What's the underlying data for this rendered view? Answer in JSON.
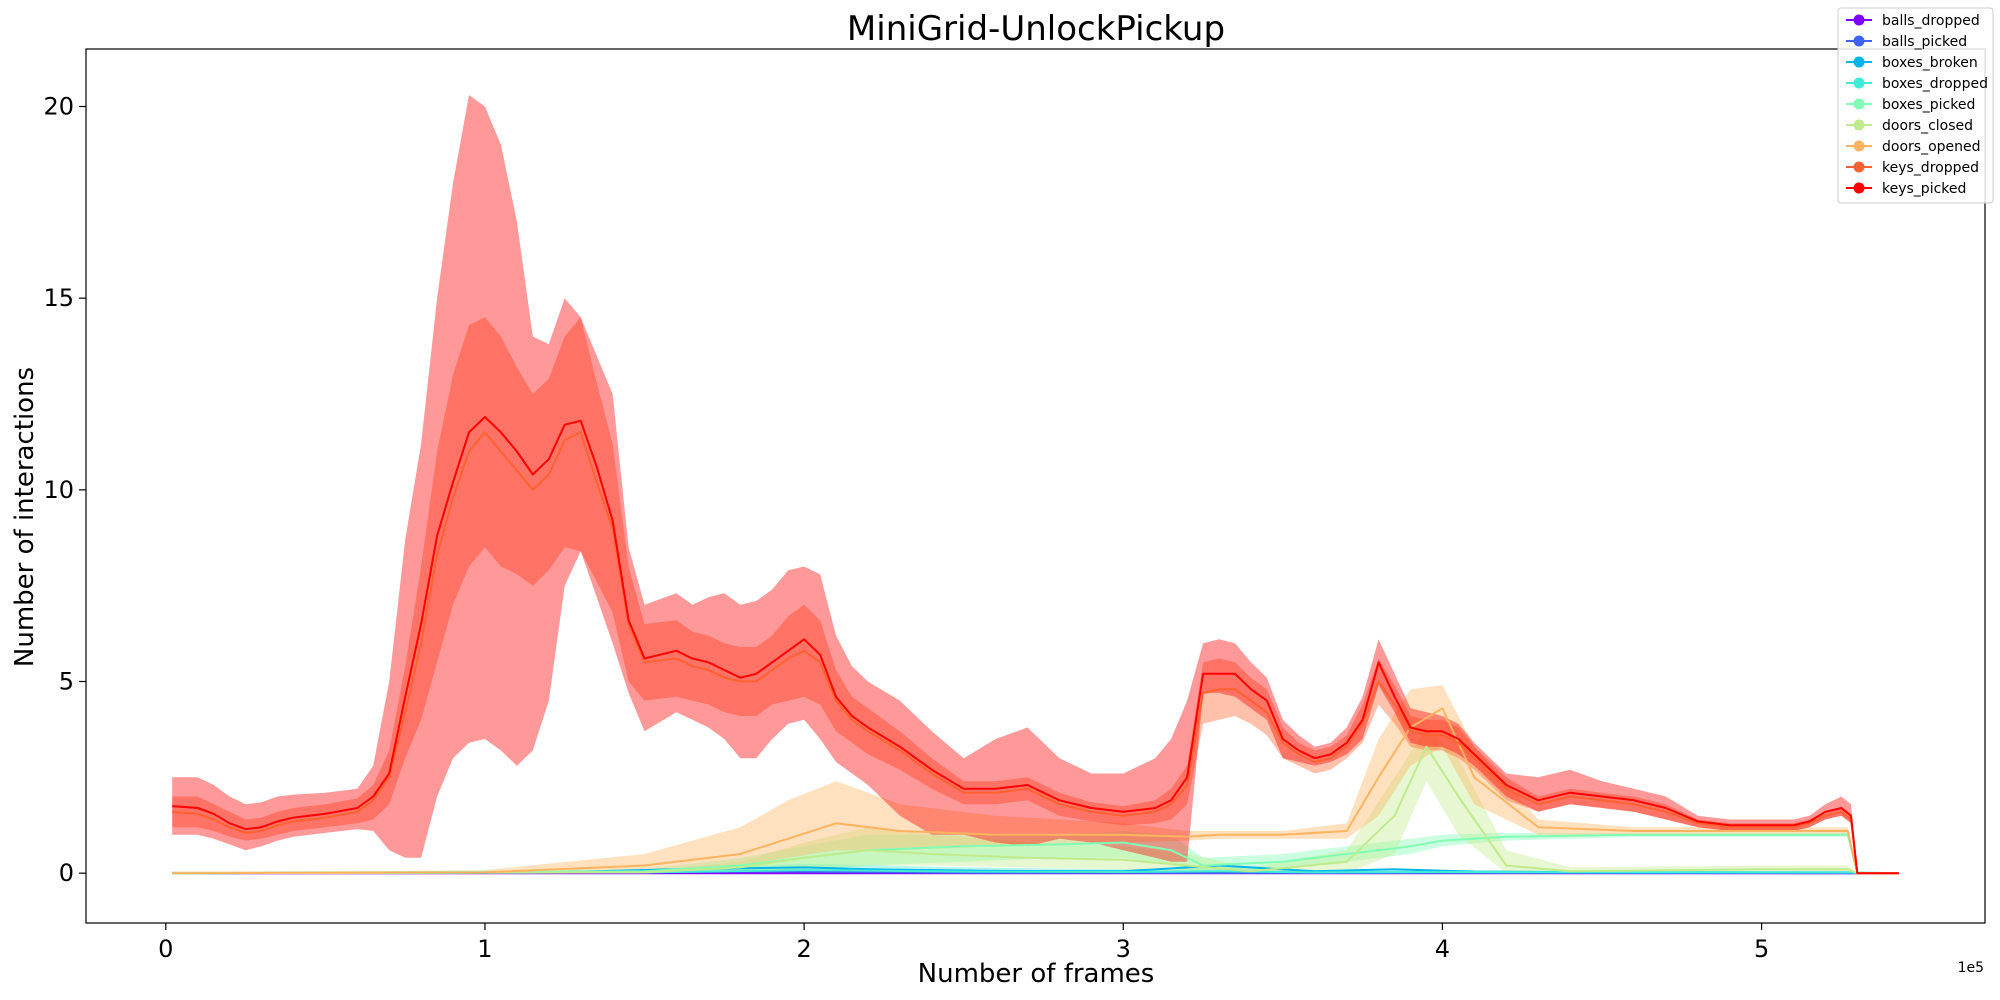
{
  "chart_data": {
    "type": "line",
    "title": "MiniGrid-UnlockPickup",
    "xlabel": "Number of frames",
    "ylabel": "Number of interactions",
    "x_offset_label": "1e5",
    "xlim": [
      -0.25,
      5.7
    ],
    "ylim": [
      -1.3,
      21.5
    ],
    "x_ticks": [
      0,
      1,
      2,
      3,
      4,
      5
    ],
    "x_tick_labels": [
      "0",
      "1",
      "2",
      "3",
      "4",
      "5"
    ],
    "y_ticks": [
      0,
      5,
      10,
      15,
      20
    ],
    "y_tick_labels": [
      "0",
      "5",
      "10",
      "15",
      "20"
    ],
    "grid": false,
    "legend_position": "top-right",
    "series": [
      {
        "name": "balls_dropped",
        "color": "#8000ff",
        "x": [
          0.02,
          5.43
        ],
        "y": [
          0.0,
          0.0
        ]
      },
      {
        "name": "balls_picked",
        "color": "#4062fa",
        "x": [
          0.02,
          1.5,
          1.9,
          2.1,
          2.5,
          5.43
        ],
        "y": [
          0.0,
          0.02,
          0.05,
          0.03,
          0.01,
          0.0
        ]
      },
      {
        "name": "boxes_broken",
        "color": "#00b5eb",
        "x": [
          0.02,
          1.2,
          1.6,
          2.0,
          2.2,
          2.6,
          3.0,
          3.3,
          3.6,
          3.85,
          4.1,
          4.5,
          5.27,
          5.3,
          5.43
        ],
        "y": [
          0.0,
          0.02,
          0.1,
          0.15,
          0.1,
          0.06,
          0.05,
          0.2,
          0.05,
          0.1,
          0.04,
          0.02,
          0.02,
          0.0,
          0.0
        ]
      },
      {
        "name": "boxes_dropped",
        "color": "#40ecd4",
        "x": [
          0.02,
          1.5,
          2.0,
          2.5,
          3.0,
          3.3,
          3.6,
          4.0,
          5.27,
          5.43
        ],
        "y": [
          0.0,
          0.02,
          0.08,
          0.04,
          0.03,
          0.05,
          0.02,
          0.03,
          0.02,
          0.0
        ],
        "band_low": [
          0.0,
          0.0,
          0.0,
          0.0,
          0.0,
          0.0,
          0.0,
          0.0,
          0.0,
          0.0
        ],
        "band_high": [
          0.0,
          0.05,
          0.25,
          0.15,
          0.1,
          0.15,
          0.05,
          0.08,
          0.05,
          0.0
        ]
      },
      {
        "name": "boxes_picked",
        "color": "#80ffb4",
        "x": [
          0.02,
          1.5,
          1.8,
          2.0,
          2.2,
          2.5,
          2.8,
          3.0,
          3.15,
          3.25,
          3.5,
          3.7,
          3.8,
          3.9,
          4.0,
          4.2,
          4.6,
          5.0,
          5.27,
          5.3,
          5.43
        ],
        "y": [
          0.0,
          0.05,
          0.2,
          0.4,
          0.6,
          0.7,
          0.75,
          0.8,
          0.6,
          0.2,
          0.3,
          0.5,
          0.6,
          0.7,
          0.85,
          0.95,
          1.0,
          1.0,
          1.0,
          0.0,
          0.0
        ],
        "band_low": [
          0.0,
          0.0,
          0.0,
          0.1,
          0.2,
          0.3,
          0.4,
          0.4,
          0.2,
          0.0,
          0.1,
          0.3,
          0.4,
          0.5,
          0.7,
          0.85,
          0.95,
          0.95,
          0.95,
          0.0,
          0.0
        ],
        "band_high": [
          0.0,
          0.1,
          0.4,
          0.7,
          1.0,
          1.0,
          1.0,
          1.1,
          1.0,
          0.4,
          0.5,
          0.7,
          0.8,
          0.9,
          1.0,
          1.05,
          1.05,
          1.05,
          1.05,
          0.0,
          0.0
        ]
      },
      {
        "name": "doors_closed",
        "color": "#c0eb8c",
        "x": [
          0.02,
          1.5,
          1.8,
          2.0,
          2.2,
          2.4,
          2.7,
          3.0,
          3.2,
          3.4,
          3.7,
          3.85,
          3.95,
          4.05,
          4.2,
          4.4,
          5.0,
          5.27,
          5.3,
          5.43
        ],
        "y": [
          0.0,
          0.02,
          0.15,
          0.4,
          0.6,
          0.5,
          0.4,
          0.35,
          0.2,
          0.05,
          0.3,
          1.5,
          3.3,
          2.0,
          0.2,
          0.05,
          0.1,
          0.1,
          0.0,
          0.0
        ],
        "band_low": [
          0.0,
          0.0,
          0.0,
          0.1,
          0.2,
          0.2,
          0.15,
          0.1,
          0.0,
          0.0,
          0.0,
          0.5,
          2.4,
          1.0,
          0.0,
          0.0,
          0.05,
          0.05,
          0.0,
          0.0
        ],
        "band_high": [
          0.0,
          0.05,
          0.3,
          0.8,
          1.2,
          1.0,
          0.8,
          0.7,
          0.5,
          0.15,
          0.6,
          2.5,
          3.8,
          3.0,
          0.6,
          0.15,
          0.2,
          0.2,
          0.0,
          0.0
        ]
      },
      {
        "name": "doors_opened",
        "color": "#ffb360",
        "x": [
          0.02,
          0.5,
          1.0,
          1.5,
          1.8,
          1.95,
          2.1,
          2.3,
          2.6,
          3.0,
          3.2,
          3.3,
          3.5,
          3.7,
          3.8,
          3.9,
          4.0,
          4.1,
          4.3,
          4.6,
          5.0,
          5.27,
          5.3,
          5.43
        ],
        "y": [
          0.0,
          0.01,
          0.02,
          0.2,
          0.5,
          0.9,
          1.3,
          1.1,
          1.0,
          1.0,
          0.95,
          1.0,
          1.0,
          1.1,
          2.5,
          3.8,
          4.3,
          2.5,
          1.2,
          1.1,
          1.1,
          1.1,
          0.0,
          0.0
        ],
        "band_low": [
          0.0,
          0.0,
          0.0,
          0.05,
          0.2,
          0.4,
          0.6,
          0.6,
          0.7,
          0.8,
          0.85,
          0.9,
          0.9,
          0.9,
          1.5,
          2.8,
          3.3,
          1.8,
          1.0,
          1.0,
          1.0,
          1.0,
          0.0,
          0.0
        ],
        "band_high": [
          0.05,
          0.05,
          0.08,
          0.5,
          1.2,
          1.9,
          2.4,
          1.8,
          1.5,
          1.3,
          1.1,
          1.1,
          1.1,
          1.3,
          3.5,
          4.8,
          4.9,
          3.3,
          1.4,
          1.2,
          1.2,
          1.2,
          0.0,
          0.0
        ]
      },
      {
        "name": "keys_dropped",
        "color": "#ff6230",
        "x": [
          0.02,
          0.1,
          0.15,
          0.2,
          0.25,
          0.3,
          0.35,
          0.4,
          0.5,
          0.6,
          0.65,
          0.7,
          0.75,
          0.8,
          0.85,
          0.9,
          0.95,
          1.0,
          1.05,
          1.1,
          1.15,
          1.2,
          1.25,
          1.3,
          1.35,
          1.4,
          1.45,
          1.5,
          1.6,
          1.65,
          1.7,
          1.75,
          1.8,
          1.85,
          1.9,
          1.95,
          2.0,
          2.05,
          2.1,
          2.15,
          2.2,
          2.3,
          2.4,
          2.5,
          2.6,
          2.7,
          2.8,
          2.9,
          3.0,
          3.1,
          3.15,
          3.2,
          3.25,
          3.3,
          3.35,
          3.4,
          3.45,
          3.5,
          3.55,
          3.6,
          3.65,
          3.7,
          3.75,
          3.8,
          3.85,
          3.9,
          3.95,
          4.0,
          4.05,
          4.1,
          4.2,
          4.3,
          4.4,
          4.5,
          4.6,
          4.7,
          4.8,
          4.9,
          5.0,
          5.1,
          5.15,
          5.2,
          5.25,
          5.28,
          5.3,
          5.43
        ],
        "y": [
          1.6,
          1.55,
          1.4,
          1.2,
          1.05,
          1.1,
          1.25,
          1.35,
          1.45,
          1.6,
          1.9,
          2.5,
          4.2,
          6.0,
          8.3,
          9.8,
          11.0,
          11.5,
          11.0,
          10.5,
          10.0,
          10.4,
          11.3,
          11.5,
          10.2,
          9.0,
          6.5,
          5.5,
          5.6,
          5.4,
          5.3,
          5.1,
          5.0,
          5.0,
          5.3,
          5.6,
          5.8,
          5.5,
          4.5,
          4.0,
          3.7,
          3.2,
          2.6,
          2.1,
          2.1,
          2.2,
          1.8,
          1.6,
          1.5,
          1.6,
          1.8,
          2.3,
          4.7,
          4.8,
          4.8,
          4.5,
          4.2,
          3.4,
          3.1,
          2.9,
          3.0,
          3.3,
          3.9,
          5.0,
          4.4,
          3.7,
          3.6,
          3.6,
          3.4,
          3.0,
          2.2,
          1.8,
          2.0,
          1.9,
          1.8,
          1.6,
          1.3,
          1.2,
          1.2,
          1.2,
          1.3,
          1.5,
          1.6,
          1.4,
          0.0,
          0.0
        ],
        "band_low": [
          1.2,
          1.2,
          1.1,
          0.95,
          0.85,
          0.9,
          1.0,
          1.1,
          1.2,
          1.3,
          1.4,
          1.8,
          3.0,
          4.0,
          5.5,
          7.0,
          8.0,
          8.5,
          8.0,
          7.8,
          7.5,
          7.9,
          8.5,
          8.4,
          7.6,
          6.8,
          5.0,
          4.5,
          4.6,
          4.5,
          4.4,
          4.2,
          4.1,
          4.1,
          4.4,
          4.5,
          4.6,
          4.4,
          3.7,
          3.4,
          3.1,
          2.7,
          2.2,
          1.8,
          1.8,
          1.9,
          1.5,
          1.35,
          1.25,
          1.3,
          1.4,
          1.8,
          3.9,
          4.0,
          4.1,
          3.9,
          3.6,
          3.0,
          2.8,
          2.6,
          2.7,
          3.0,
          3.4,
          4.4,
          3.9,
          3.3,
          3.2,
          3.2,
          3.0,
          2.7,
          1.9,
          1.6,
          1.8,
          1.7,
          1.6,
          1.4,
          1.2,
          1.1,
          1.1,
          1.1,
          1.2,
          1.4,
          1.5,
          1.3,
          0.0,
          0.0
        ],
        "band_high": [
          2.0,
          2.0,
          1.8,
          1.6,
          1.4,
          1.45,
          1.6,
          1.7,
          1.8,
          1.95,
          2.3,
          3.2,
          5.4,
          8.0,
          11.0,
          13.0,
          14.3,
          14.5,
          14.0,
          13.2,
          12.5,
          12.9,
          14.0,
          14.5,
          12.8,
          11.2,
          8.0,
          6.5,
          6.6,
          6.3,
          6.2,
          6.0,
          5.9,
          5.9,
          6.2,
          6.7,
          7.0,
          6.6,
          5.3,
          4.6,
          4.3,
          3.7,
          3.0,
          2.4,
          2.4,
          2.5,
          2.1,
          1.85,
          1.75,
          1.9,
          2.2,
          2.8,
          5.5,
          5.6,
          5.5,
          5.1,
          4.8,
          3.8,
          3.4,
          3.2,
          3.3,
          3.6,
          4.4,
          5.6,
          4.9,
          4.1,
          4.0,
          4.0,
          3.8,
          3.3,
          2.5,
          2.0,
          2.2,
          2.1,
          2.0,
          1.8,
          1.4,
          1.3,
          1.3,
          1.3,
          1.4,
          1.6,
          1.7,
          1.5,
          0.0,
          0.0
        ]
      },
      {
        "name": "keys_picked",
        "color": "#ff0000",
        "x": [
          0.02,
          0.1,
          0.15,
          0.2,
          0.25,
          0.3,
          0.35,
          0.4,
          0.5,
          0.6,
          0.65,
          0.7,
          0.75,
          0.8,
          0.85,
          0.9,
          0.95,
          1.0,
          1.05,
          1.1,
          1.15,
          1.2,
          1.25,
          1.3,
          1.35,
          1.4,
          1.45,
          1.5,
          1.6,
          1.65,
          1.7,
          1.75,
          1.8,
          1.85,
          1.9,
          1.95,
          2.0,
          2.05,
          2.1,
          2.15,
          2.2,
          2.3,
          2.4,
          2.5,
          2.6,
          2.7,
          2.8,
          2.9,
          3.0,
          3.1,
          3.15,
          3.2,
          3.25,
          3.3,
          3.35,
          3.4,
          3.45,
          3.5,
          3.55,
          3.6,
          3.65,
          3.7,
          3.75,
          3.8,
          3.85,
          3.9,
          3.95,
          4.0,
          4.05,
          4.1,
          4.2,
          4.3,
          4.4,
          4.5,
          4.6,
          4.7,
          4.8,
          4.9,
          5.0,
          5.1,
          5.15,
          5.2,
          5.25,
          5.28,
          5.3,
          5.43
        ],
        "y": [
          1.75,
          1.7,
          1.55,
          1.3,
          1.15,
          1.2,
          1.35,
          1.45,
          1.55,
          1.7,
          2.0,
          2.6,
          4.6,
          6.5,
          8.8,
          10.2,
          11.5,
          11.9,
          11.5,
          11.0,
          10.4,
          10.8,
          11.7,
          11.8,
          10.6,
          9.2,
          6.6,
          5.6,
          5.8,
          5.6,
          5.5,
          5.3,
          5.1,
          5.2,
          5.5,
          5.8,
          6.1,
          5.7,
          4.6,
          4.1,
          3.8,
          3.3,
          2.7,
          2.2,
          2.2,
          2.3,
          1.9,
          1.7,
          1.6,
          1.7,
          1.9,
          2.5,
          5.2,
          5.2,
          5.2,
          4.8,
          4.5,
          3.5,
          3.2,
          3.0,
          3.1,
          3.4,
          4.0,
          5.5,
          4.6,
          3.8,
          3.7,
          3.7,
          3.5,
          3.1,
          2.3,
          1.9,
          2.1,
          2.0,
          1.9,
          1.7,
          1.35,
          1.25,
          1.25,
          1.25,
          1.35,
          1.6,
          1.7,
          1.5,
          0.0,
          0.0
        ],
        "band_low": [
          1.0,
          1.0,
          0.9,
          0.75,
          0.6,
          0.7,
          0.85,
          0.95,
          1.05,
          1.15,
          1.1,
          0.6,
          0.4,
          0.4,
          2.0,
          3.0,
          3.4,
          3.5,
          3.2,
          2.8,
          3.2,
          4.5,
          7.5,
          8.4,
          7.2,
          6.0,
          4.7,
          3.7,
          4.2,
          4.0,
          3.8,
          3.5,
          3.0,
          3.0,
          3.5,
          3.9,
          4.0,
          3.5,
          2.9,
          2.6,
          2.3,
          1.5,
          1.0,
          1.0,
          0.8,
          0.7,
          0.9,
          0.8,
          0.6,
          0.4,
          0.3,
          0.3,
          4.7,
          4.7,
          4.6,
          4.3,
          4.0,
          3.0,
          2.9,
          2.8,
          2.9,
          3.1,
          3.5,
          4.9,
          4.2,
          3.4,
          3.3,
          3.3,
          3.1,
          2.8,
          2.0,
          1.6,
          1.8,
          1.7,
          1.6,
          1.4,
          1.2,
          1.1,
          1.1,
          1.1,
          1.2,
          1.4,
          1.5,
          1.3,
          0.0,
          0.0
        ],
        "band_high": [
          2.5,
          2.5,
          2.3,
          2.0,
          1.8,
          1.85,
          2.0,
          2.05,
          2.1,
          2.2,
          2.8,
          5.0,
          8.7,
          11.2,
          15.0,
          18.0,
          20.3,
          20.0,
          19.0,
          17.0,
          14.0,
          13.8,
          15.0,
          14.5,
          13.5,
          12.5,
          8.5,
          7.0,
          7.3,
          7.0,
          7.2,
          7.3,
          7.0,
          7.1,
          7.4,
          7.9,
          8.0,
          7.8,
          6.2,
          5.4,
          5.0,
          4.5,
          3.7,
          3.0,
          3.5,
          3.8,
          3.0,
          2.6,
          2.6,
          3.0,
          3.5,
          4.5,
          6.0,
          6.1,
          6.0,
          5.5,
          5.1,
          4.0,
          3.6,
          3.3,
          3.4,
          3.8,
          4.6,
          6.1,
          5.2,
          4.3,
          4.2,
          4.1,
          3.9,
          3.4,
          2.6,
          2.5,
          2.7,
          2.4,
          2.2,
          2.0,
          1.5,
          1.4,
          1.4,
          1.4,
          1.5,
          1.8,
          2.0,
          1.8,
          0.0,
          0.0
        ]
      }
    ]
  }
}
